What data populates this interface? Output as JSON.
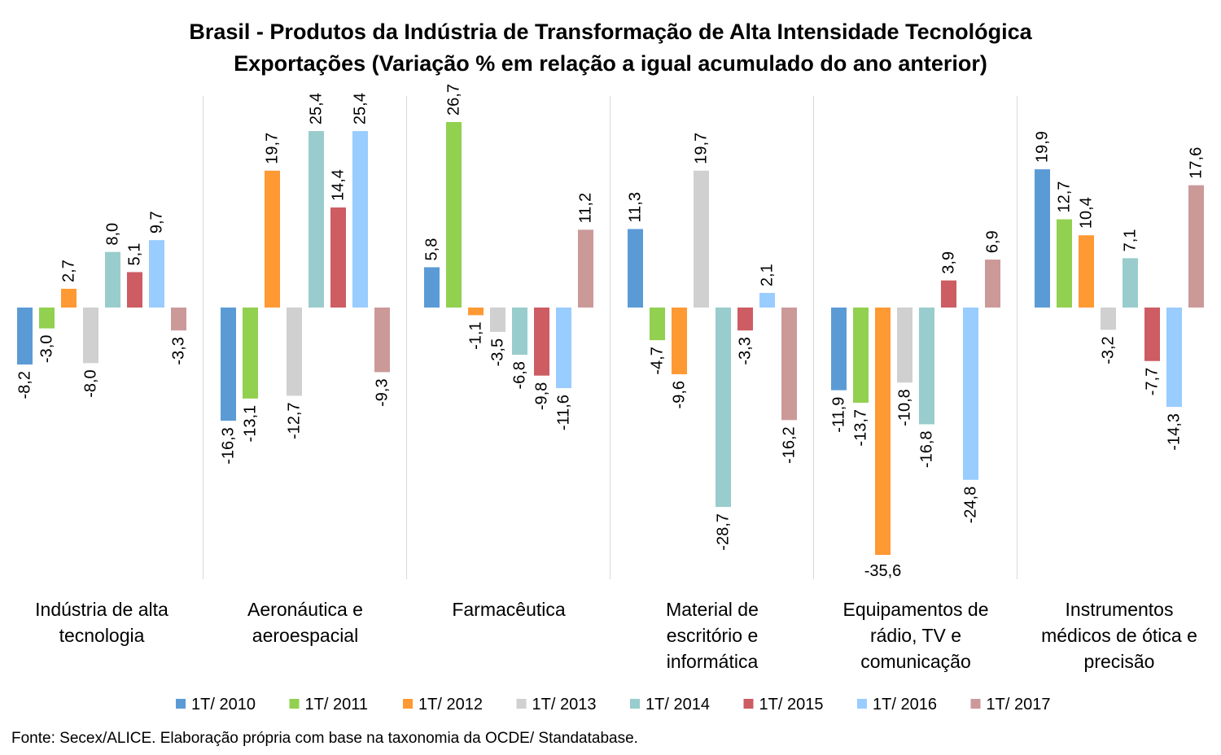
{
  "chart_data": {
    "type": "bar",
    "title": [
      "Brasil - Produtos da Indústria de Transformação de Alta Intensidade Tecnológica",
      "Exportações (Variação % em relação a igual acumulado do ano anterior)"
    ],
    "categories": [
      [
        "Indústria de alta",
        "tecnologia"
      ],
      [
        "Aeronáutica e",
        "aeroespacial"
      ],
      [
        "Farmacêutica"
      ],
      [
        "Material de",
        "escritório e",
        "informática"
      ],
      [
        "Equipamentos de",
        "rádio, TV e",
        "comunicação"
      ],
      [
        "Instrumentos",
        "médicos de ótica e",
        "precisão"
      ]
    ],
    "series": [
      {
        "name": "1T/ 2010",
        "color": "#5b9bd5",
        "values": [
          -8.2,
          -16.3,
          5.8,
          11.3,
          -11.9,
          19.9
        ],
        "labels": [
          "-8,2",
          "-16,3",
          "5,8",
          "11,3",
          "-11,9",
          "19,9"
        ]
      },
      {
        "name": "1T/ 2011",
        "color": "#92d050",
        "values": [
          -3.0,
          -13.1,
          26.7,
          -4.7,
          -13.7,
          12.7
        ],
        "labels": [
          "-3,0",
          "-13,1",
          "26,7",
          "-4,7",
          "-13,7",
          "12,7"
        ]
      },
      {
        "name": "1T/ 2012",
        "color": "#ff9933",
        "values": [
          2.7,
          19.7,
          -1.1,
          -9.6,
          -35.6,
          10.4
        ],
        "labels": [
          "2,7",
          "19,7",
          "-1,1",
          "-9,6",
          "-35,6",
          "10,4"
        ]
      },
      {
        "name": "1T/ 2013",
        "color": "#d0d0d0",
        "values": [
          -8.0,
          -12.7,
          -3.5,
          19.7,
          -10.8,
          -3.2
        ],
        "labels": [
          "-8,0",
          "-12,7",
          "-3,5",
          "19,7",
          "-10,8",
          "-3,2"
        ]
      },
      {
        "name": "1T/ 2014",
        "color": "#99cccc",
        "values": [
          8.0,
          25.4,
          -6.8,
          -28.7,
          -16.8,
          7.1
        ],
        "labels": [
          "8,0",
          "25,4",
          "-6,8",
          "-28,7",
          "-16,8",
          "7,1"
        ]
      },
      {
        "name": "1T/ 2015",
        "color": "#cd5c63",
        "values": [
          5.1,
          14.4,
          -9.8,
          -3.3,
          3.9,
          -7.7
        ],
        "labels": [
          "5,1",
          "14,4",
          "-9,8",
          "-3,3",
          "3,9",
          "-7,7"
        ]
      },
      {
        "name": "1T/ 2016",
        "color": "#99ccff",
        "values": [
          9.7,
          25.4,
          -11.6,
          2.1,
          -24.8,
          -14.3
        ],
        "labels": [
          "9,7",
          "25,4",
          "-11,6",
          "2,1",
          "-24,8",
          "-14,3"
        ]
      },
      {
        "name": "1T/ 2017",
        "color": "#cc9999",
        "values": [
          -3.3,
          -9.3,
          11.2,
          -16.2,
          6.9,
          17.6
        ],
        "labels": [
          "-3,3",
          "-9,3",
          "11,2",
          "-16,2",
          "6,9",
          "17,6"
        ]
      }
    ],
    "ylim": [
      -38.6,
      30.0
    ],
    "grid": false,
    "legend_position": "bottom",
    "source": "Fonte: Secex/ALICE. Elaboração própria com base na taxonomia da OCDE/ Standatabase."
  }
}
